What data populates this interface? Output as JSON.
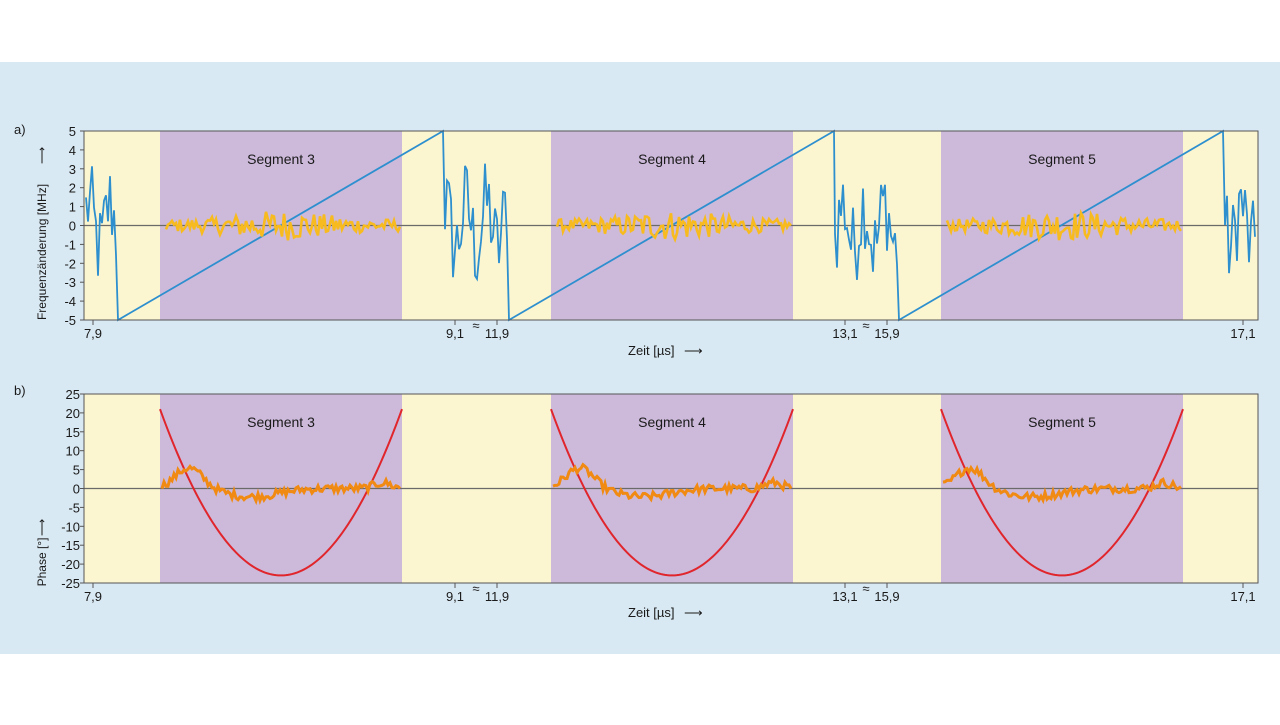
{
  "colors": {
    "figure_bg": "#d9e9f3",
    "idle_region": "#fbf6cf",
    "segment_region": "#cdbadb",
    "chirp_line": "#2e8fcf",
    "freq_residual": "#f7bb1f",
    "phase_parabola": "#e0262c",
    "phase_residual": "#f08a12",
    "zero_line": "#6a6a6a"
  },
  "chart_data": [
    {
      "panel_label": "a)",
      "type": "line",
      "ylabel": "Frequenzänderung [MHz]",
      "xlabel": "Zeit [µs]",
      "xlabel_arrow": "⟶",
      "ylabel_arrow": "⟶",
      "ylim": [
        -5,
        5
      ],
      "yticks": [
        5,
        4,
        3,
        2,
        1,
        0,
        -1,
        -2,
        -3,
        -4,
        -5
      ],
      "xtick_labels": [
        "7,9",
        "9,1",
        "11,9",
        "13,1",
        "15,9",
        "17,1"
      ],
      "axis_break_symbol": "≈",
      "segments": [
        {
          "label": "Segment 3"
        },
        {
          "label": "Segment 4"
        },
        {
          "label": "Segment 5"
        }
      ],
      "series": [
        {
          "role": "frequency chirp",
          "segment_values": {
            "start": -5,
            "end": 5
          },
          "idle_jitter_range": [
            -4,
            4
          ]
        },
        {
          "role": "frequency residual",
          "value_range": [
            -0.8,
            0.8
          ]
        }
      ]
    },
    {
      "panel_label": "b)",
      "type": "line",
      "ylabel": "Phase [°]",
      "xlabel": "Zeit [µs]",
      "xlabel_arrow": "⟶",
      "ylabel_arrow": "⟶",
      "ylim": [
        -25,
        25
      ],
      "yticks": [
        25,
        20,
        15,
        10,
        5,
        0,
        -5,
        -10,
        -15,
        -20,
        -25
      ],
      "xtick_labels": [
        "7,9",
        "9,1",
        "11,9",
        "13,1",
        "15,9",
        "17,1"
      ],
      "axis_break_symbol": "≈",
      "segments": [
        {
          "label": "Segment 3"
        },
        {
          "label": "Segment 4"
        },
        {
          "label": "Segment 5"
        }
      ],
      "series": [
        {
          "role": "phase parabola",
          "edge_value": 21,
          "min_value": -23
        },
        {
          "role": "phase residual",
          "value_range": [
            -3,
            6
          ]
        }
      ]
    }
  ]
}
